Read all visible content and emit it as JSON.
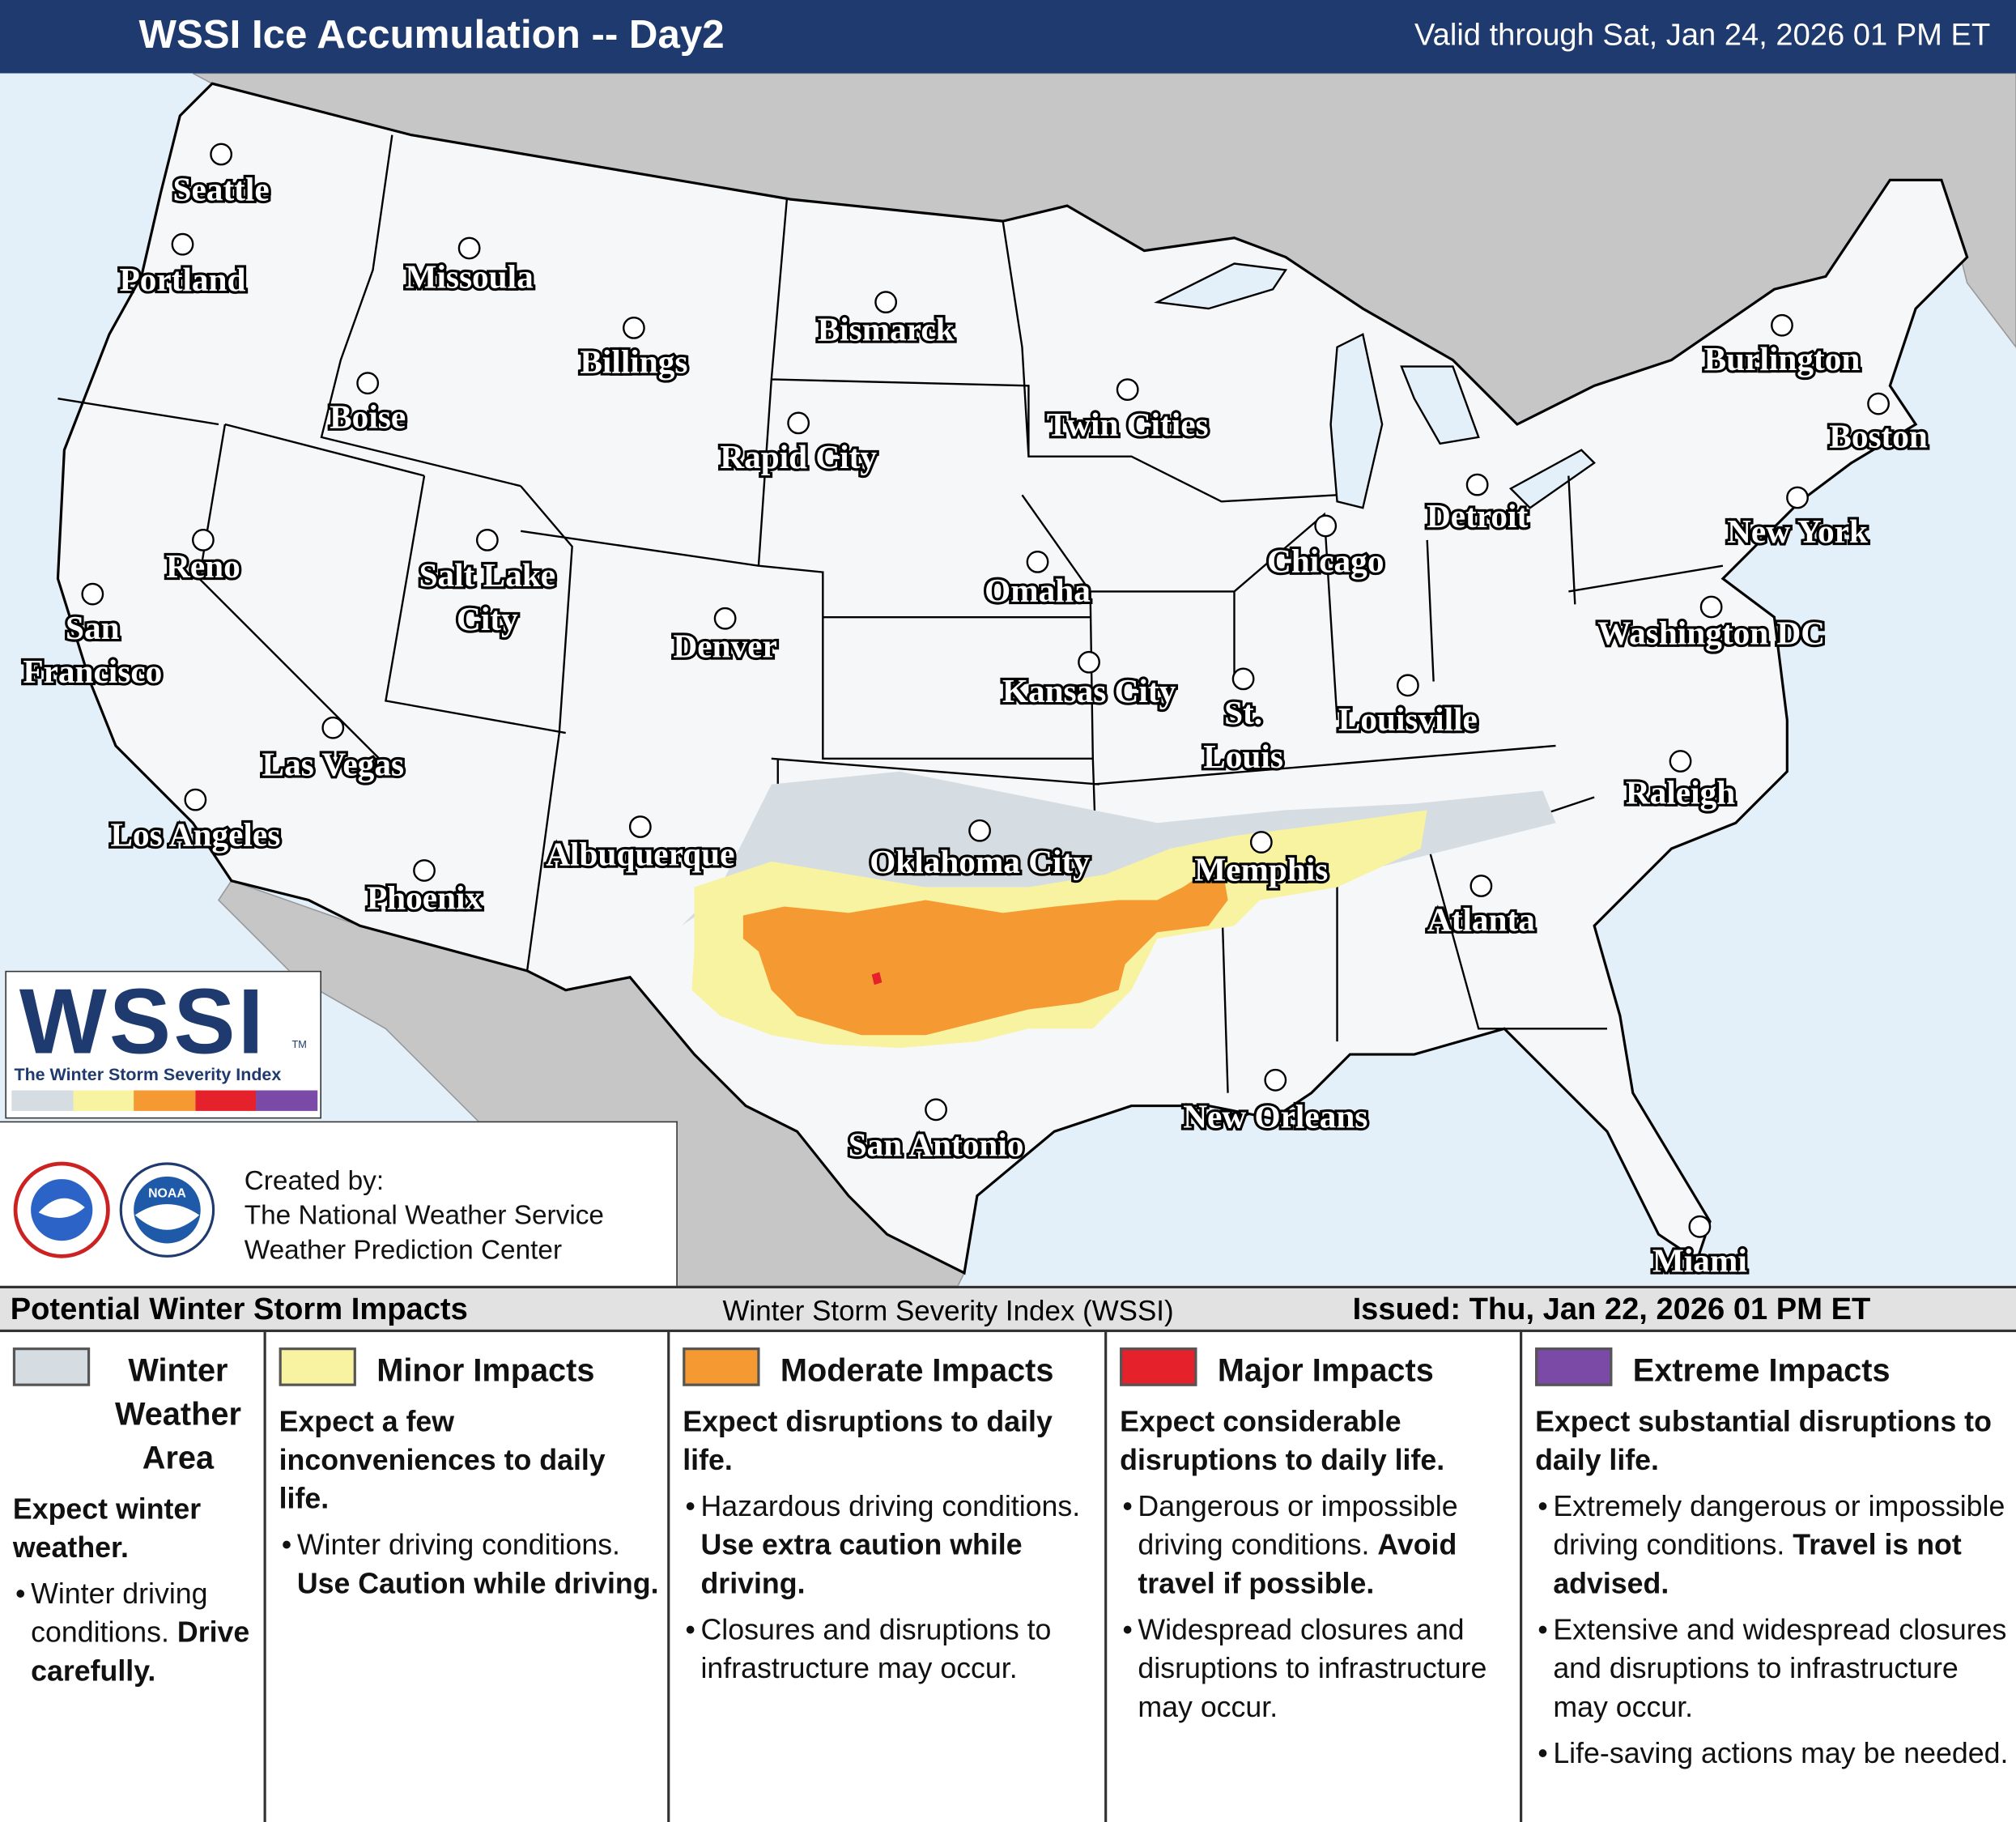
{
  "header": {
    "title": "WSSI Ice Accumulation -- Day2",
    "valid": "Valid through Sat, Jan 24, 2026 01 PM ET"
  },
  "cities": [
    {
      "lines": [
        "Seattle"
      ]
    },
    {
      "lines": [
        "Portland"
      ]
    },
    {
      "lines": [
        "Missoula"
      ]
    },
    {
      "lines": [
        "Billings"
      ]
    },
    {
      "lines": [
        "Bismarck"
      ]
    },
    {
      "lines": [
        "Boise"
      ]
    },
    {
      "lines": [
        "Rapid City"
      ]
    },
    {
      "lines": [
        "Twin Cities"
      ]
    },
    {
      "lines": [
        "Burlington"
      ]
    },
    {
      "lines": [
        "Boston"
      ]
    },
    {
      "lines": [
        "Detroit"
      ]
    },
    {
      "lines": [
        "New York"
      ]
    },
    {
      "lines": [
        "Chicago"
      ]
    },
    {
      "lines": [
        "Reno"
      ]
    },
    {
      "lines": [
        "Salt Lake",
        "City"
      ]
    },
    {
      "lines": [
        "Omaha"
      ]
    },
    {
      "lines": [
        "San",
        "Francisco"
      ]
    },
    {
      "lines": [
        "Denver"
      ]
    },
    {
      "lines": [
        "Washington DC"
      ]
    },
    {
      "lines": [
        "Kansas City"
      ]
    },
    {
      "lines": [
        "St.",
        "Louis"
      ]
    },
    {
      "lines": [
        "Louisville"
      ]
    },
    {
      "lines": [
        "Las Vegas"
      ]
    },
    {
      "lines": [
        "Raleigh"
      ]
    },
    {
      "lines": [
        "Los Angeles"
      ]
    },
    {
      "lines": [
        "Oklahoma City"
      ]
    },
    {
      "lines": [
        "Albuquerque"
      ]
    },
    {
      "lines": [
        "Memphis"
      ]
    },
    {
      "lines": [
        "Phoenix"
      ]
    },
    {
      "lines": [
        "Atlanta"
      ]
    },
    {
      "lines": [
        "New Orleans"
      ]
    },
    {
      "lines": [
        "San Antonio"
      ]
    },
    {
      "lines": [
        "Miami"
      ]
    }
  ],
  "logo": {
    "title": "WSSI",
    "trademark": "TM",
    "subtitle": "The Winter Storm Severity Index"
  },
  "credits": {
    "lines": [
      "Created by:",
      "The National Weather Service",
      "Weather Prediction Center"
    ],
    "noaa_logo_text": "NOAA"
  },
  "legend": {
    "title": "Potential Winter Storm Impacts",
    "center": "Winter Storm Severity Index (WSSI)",
    "issued": "Issued: Thu, Jan 22, 2026 01 PM ET",
    "categories": [
      {
        "name": "Winter Weather Area",
        "color": "#d5dde3",
        "lead": "Expect winter weather.",
        "bullets": [
          {
            "text": "Winter driving conditions.",
            "bold": "Drive carefully."
          }
        ]
      },
      {
        "name": "Minor Impacts",
        "color": "#f8f3a0",
        "lead": "Expect a few inconveniences to daily life.",
        "bullets": [
          {
            "text": "Winter driving conditions.",
            "bold": "Use Caution while driving."
          }
        ]
      },
      {
        "name": "Moderate Impacts",
        "color": "#f59a33",
        "lead": "Expect disruptions to daily life.",
        "bullets": [
          {
            "text": "Hazardous driving conditions.",
            "bold": "Use extra caution while driving."
          },
          {
            "text": "Closures and disruptions to infrastructure may occur."
          }
        ]
      },
      {
        "name": "Major Impacts",
        "color": "#e5222b",
        "lead": "Expect considerable disruptions to daily life.",
        "bullets": [
          {
            "text": "Dangerous or impossible driving conditions.",
            "bold": "Avoid travel if possible."
          },
          {
            "text": "Widespread closures and disruptions to infrastructure may occur."
          }
        ]
      },
      {
        "name": "Extreme Impacts",
        "color": "#7b4aa6",
        "lead": "Expect substantial disruptions to daily life.",
        "bullets": [
          {
            "text": "Extremely dangerous or impossible driving conditions.",
            "bold": "Travel is not advised."
          },
          {
            "text": "Extensive and widespread closures and disruptions to infrastructure may occur."
          },
          {
            "text": "Life-saving actions may be needed."
          }
        ]
      }
    ]
  }
}
